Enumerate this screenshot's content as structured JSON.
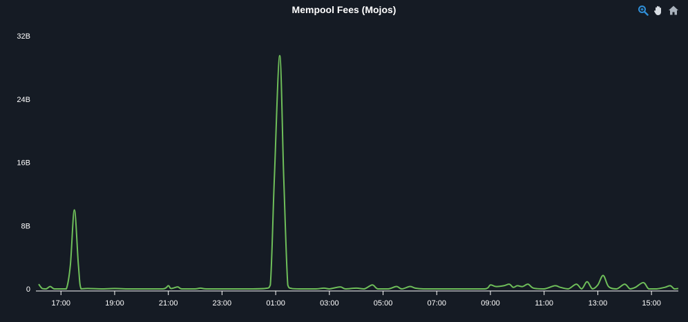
{
  "chart_data": {
    "type": "line",
    "title": "Mempool Fees (Mojos)",
    "xlabel": "",
    "ylabel": "",
    "ylim": [
      0,
      32
    ],
    "y_unit": "B",
    "y_ticks": [
      "0",
      "8B",
      "16B",
      "24B",
      "32B"
    ],
    "y_tick_values": [
      0,
      8,
      16,
      24,
      32
    ],
    "xlim": [
      "16:10",
      "16:00 (next day)"
    ],
    "x_ticks": [
      "17:00",
      "19:00",
      "21:00",
      "23:00",
      "01:00",
      "03:00",
      "05:00",
      "07:00",
      "09:00",
      "11:00",
      "13:00",
      "15:00"
    ],
    "x_tick_hours": [
      17,
      19,
      21,
      23,
      25,
      27,
      29,
      31,
      33,
      35,
      37,
      39
    ],
    "x_range_hours": [
      16.17,
      40.0
    ],
    "grid": false,
    "legend": "none",
    "series": [
      {
        "color": "#6fbf5a",
        "points": [
          [
            16.17,
            0.6
          ],
          [
            16.3,
            0.05
          ],
          [
            16.45,
            0.0
          ],
          [
            16.6,
            0.3
          ],
          [
            16.75,
            0.0
          ],
          [
            17.0,
            0.0
          ],
          [
            17.2,
            0.0
          ],
          [
            17.35,
            3.0
          ],
          [
            17.5,
            10.0
          ],
          [
            17.65,
            3.0
          ],
          [
            17.75,
            0.0
          ],
          [
            18.0,
            0.05
          ],
          [
            18.5,
            0.0
          ],
          [
            19.0,
            0.05
          ],
          [
            19.5,
            0.0
          ],
          [
            20.0,
            0.0
          ],
          [
            20.8,
            0.0
          ],
          [
            21.0,
            0.4
          ],
          [
            21.1,
            0.05
          ],
          [
            21.35,
            0.25
          ],
          [
            21.5,
            0.0
          ],
          [
            22.0,
            0.0
          ],
          [
            22.2,
            0.1
          ],
          [
            22.4,
            0.0
          ],
          [
            23.0,
            0.0
          ],
          [
            23.5,
            0.0
          ],
          [
            24.0,
            0.0
          ],
          [
            24.6,
            0.05
          ],
          [
            24.8,
            0.5
          ],
          [
            24.95,
            14.0
          ],
          [
            25.15,
            29.5
          ],
          [
            25.3,
            14.0
          ],
          [
            25.45,
            0.5
          ],
          [
            25.6,
            0.05
          ],
          [
            26.0,
            0.0
          ],
          [
            26.5,
            0.0
          ],
          [
            26.8,
            0.1
          ],
          [
            27.0,
            0.0
          ],
          [
            27.4,
            0.25
          ],
          [
            27.6,
            0.0
          ],
          [
            28.0,
            0.1
          ],
          [
            28.3,
            0.0
          ],
          [
            28.6,
            0.5
          ],
          [
            28.8,
            0.0
          ],
          [
            29.2,
            0.0
          ],
          [
            29.5,
            0.3
          ],
          [
            29.7,
            0.0
          ],
          [
            30.0,
            0.3
          ],
          [
            30.2,
            0.1
          ],
          [
            30.5,
            0.0
          ],
          [
            31.0,
            0.0
          ],
          [
            32.0,
            0.0
          ],
          [
            32.8,
            0.0
          ],
          [
            33.0,
            0.5
          ],
          [
            33.2,
            0.3
          ],
          [
            33.5,
            0.4
          ],
          [
            33.7,
            0.6
          ],
          [
            33.85,
            0.2
          ],
          [
            34.0,
            0.4
          ],
          [
            34.2,
            0.3
          ],
          [
            34.4,
            0.6
          ],
          [
            34.6,
            0.1
          ],
          [
            35.0,
            0.0
          ],
          [
            35.4,
            0.4
          ],
          [
            35.6,
            0.2
          ],
          [
            35.9,
            0.0
          ],
          [
            36.2,
            0.6
          ],
          [
            36.4,
            0.0
          ],
          [
            36.6,
            0.9
          ],
          [
            36.8,
            0.0
          ],
          [
            37.0,
            0.5
          ],
          [
            37.2,
            1.7
          ],
          [
            37.4,
            0.3
          ],
          [
            37.7,
            0.0
          ],
          [
            38.0,
            0.6
          ],
          [
            38.2,
            0.0
          ],
          [
            38.4,
            0.2
          ],
          [
            38.7,
            0.8
          ],
          [
            38.9,
            0.0
          ],
          [
            39.2,
            0.0
          ],
          [
            39.5,
            0.2
          ],
          [
            39.7,
            0.4
          ],
          [
            39.85,
            0.0
          ],
          [
            40.0,
            0.05
          ]
        ]
      }
    ]
  },
  "toolbar": {
    "tools": [
      "zoom-icon",
      "pan-icon",
      "home-icon"
    ],
    "accent": "#2f8fd8",
    "icon_color": "#d8dde3"
  }
}
